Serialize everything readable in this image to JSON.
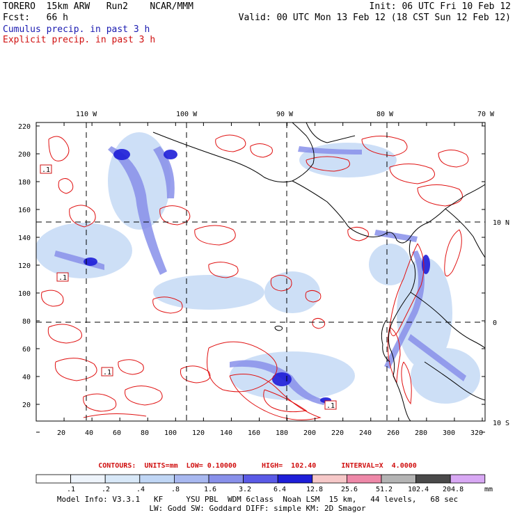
{
  "header": {
    "model": "TORERO  15km ARW   Run2    NCAR/MMM",
    "init": "Init: 06 UTC Fri 10 Feb 12",
    "fcst": "Fcst:   66 h",
    "valid": "Valid: 00 UTC Mon 13 Feb 12 (18 CST Sun 12 Feb 12)",
    "legend_cumulus": "Cumulus precip. in past 3 h",
    "legend_explicit": "Explicit precip. in past 3 h"
  },
  "map": {
    "lon_labels": [
      "110 W",
      "100 W",
      "90 W",
      "80 W",
      "70 W"
    ],
    "lat_labels": [
      "10 N",
      "0",
      "10 S"
    ],
    "x_ticks": [
      "20",
      "40",
      "60",
      "80",
      "100",
      "120",
      "140",
      "160",
      "180",
      "200",
      "220",
      "240",
      "260",
      "280",
      "300",
      "320"
    ],
    "y_ticks": [
      "220",
      "200",
      "180",
      "160",
      "140",
      "120",
      "100",
      "80",
      "60",
      "40",
      "20"
    ],
    "box_labels": [
      ".1",
      ".1",
      ".1",
      ".1"
    ]
  },
  "contours": {
    "line": "CONTOURS:  UNITS=mm  LOW= 0.10000      HIGH=  102.40      INTERVAL=X  4.0000"
  },
  "colorbar": {
    "labels": [
      ".1",
      ".2",
      ".4",
      ".8",
      "1.6",
      "3.2",
      "6.4",
      "12.8",
      "25.6",
      "51.2",
      "102.4",
      "204.8"
    ],
    "unit": "mm",
    "colors": [
      "#ffffff",
      "#eef4fb",
      "#d8e8f8",
      "#c0d6f5",
      "#a8b8f0",
      "#8890ea",
      "#5a5ae6",
      "#1e1ed8",
      "#f6c8c8",
      "#ee88a8",
      "#b4b4b4",
      "#4a4a4a",
      "#d8a8f4"
    ]
  },
  "footer": {
    "line1": "Model Info: V3.3.1   KF     YSU PBL  WDM 6class  Noah LSM  15 km,   44 levels,   68 sec",
    "line2": "LW: Godd SW: Goddard DIFF: simple KM: 2D Smagor"
  }
}
